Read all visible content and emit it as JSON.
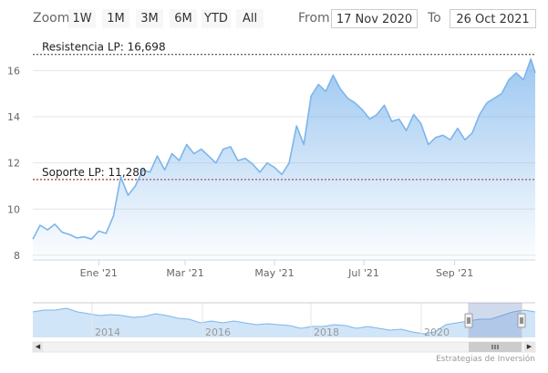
{
  "toolbar": {
    "zoom_label": "Zoom",
    "buttons": [
      "1W",
      "1M",
      "3M",
      "6M",
      "YTD",
      "All"
    ],
    "from_label": "From",
    "from_value": "17 Nov 2020",
    "to_label": "To",
    "to_value": "26 Oct 2021"
  },
  "colors": {
    "line": "#7cb5ec",
    "resistance_line": "#333333",
    "support_line": "#8b0000",
    "navigator_mask": "rgba(102,133,194,0.3)"
  },
  "credits": "Estrategias de Inversión",
  "chart_data": {
    "type": "area",
    "title": "",
    "xlabel": "",
    "ylabel": "",
    "ylim": [
      7.8,
      17.2
    ],
    "xlim": [
      "2020-11-17",
      "2021-10-26"
    ],
    "y_ticks": [
      8,
      10,
      12,
      14,
      16
    ],
    "x_ticks": [
      {
        "label": "Ene '21",
        "date": "2021-01-01"
      },
      {
        "label": "Mar '21",
        "date": "2021-03-01"
      },
      {
        "label": "May '21",
        "date": "2021-05-01"
      },
      {
        "label": "Jul '21",
        "date": "2021-07-01"
      },
      {
        "label": "Sep '21",
        "date": "2021-09-01"
      }
    ],
    "grid": true,
    "plot_lines": [
      {
        "label": "Resistencia LP: 16,698",
        "value": 16.698,
        "style": "dashed"
      },
      {
        "label": "Soporte LP: 11,280",
        "value": 11.28,
        "style": "dashed"
      }
    ],
    "series": [
      {
        "x": [
          "2020-11-17",
          "2020-11-22",
          "2020-11-27",
          "2020-12-02",
          "2020-12-07",
          "2020-12-12",
          "2020-12-17",
          "2020-12-22",
          "2020-12-27",
          "2021-01-01",
          "2021-01-06",
          "2021-01-11",
          "2021-01-16",
          "2021-01-21",
          "2021-01-26",
          "2021-01-31",
          "2021-02-05",
          "2021-02-10",
          "2021-02-15",
          "2021-02-20",
          "2021-02-25",
          "2021-03-02",
          "2021-03-07",
          "2021-03-12",
          "2021-03-17",
          "2021-03-22",
          "2021-03-27",
          "2021-04-01",
          "2021-04-06",
          "2021-04-11",
          "2021-04-16",
          "2021-04-21",
          "2021-04-26",
          "2021-05-01",
          "2021-05-06",
          "2021-05-11",
          "2021-05-16",
          "2021-05-21",
          "2021-05-26",
          "2021-05-31",
          "2021-06-05",
          "2021-06-10",
          "2021-06-15",
          "2021-06-20",
          "2021-06-25",
          "2021-06-30",
          "2021-07-05",
          "2021-07-10",
          "2021-07-15",
          "2021-07-20",
          "2021-07-25",
          "2021-07-30",
          "2021-08-04",
          "2021-08-09",
          "2021-08-14",
          "2021-08-19",
          "2021-08-24",
          "2021-08-29",
          "2021-09-03",
          "2021-09-08",
          "2021-09-13",
          "2021-09-18",
          "2021-09-23",
          "2021-09-28",
          "2021-10-03",
          "2021-10-08",
          "2021-10-13",
          "2021-10-18",
          "2021-10-23",
          "2021-10-26"
        ],
        "values": [
          8.7,
          9.3,
          9.1,
          9.35,
          9.0,
          8.9,
          8.75,
          8.8,
          8.7,
          9.05,
          8.95,
          9.7,
          11.4,
          10.6,
          11.0,
          11.7,
          11.6,
          12.3,
          11.7,
          12.4,
          12.1,
          12.8,
          12.4,
          12.6,
          12.3,
          12.0,
          12.6,
          12.7,
          12.1,
          12.2,
          11.95,
          11.6,
          12.0,
          11.8,
          11.5,
          12.0,
          13.6,
          12.8,
          14.9,
          15.4,
          15.1,
          15.8,
          15.2,
          14.8,
          14.6,
          14.3,
          13.9,
          14.1,
          14.5,
          13.8,
          13.9,
          13.4,
          14.1,
          13.7,
          12.8,
          13.1,
          13.2,
          13.0,
          13.5,
          13.0,
          13.3,
          14.1,
          14.6,
          14.8,
          15.0,
          15.6,
          15.9,
          15.6,
          16.5,
          15.9
        ]
      }
    ]
  },
  "navigator": {
    "x_labels": [
      "2014",
      "2016",
      "2018",
      "2020"
    ],
    "values": [
      8.2,
      8.3,
      8.3,
      8.4,
      8.2,
      8.1,
      8.0,
      8.05,
      8.0,
      7.9,
      7.95,
      8.1,
      8.0,
      7.85,
      7.8,
      7.6,
      7.7,
      7.6,
      7.7,
      7.6,
      7.5,
      7.55,
      7.5,
      7.45,
      7.3,
      7.4,
      7.4,
      7.5,
      7.45,
      7.3,
      7.4,
      7.3,
      7.2,
      7.25,
      7.1,
      7.0,
      7.1,
      7.5,
      7.6,
      7.7,
      7.8,
      7.8,
      8.0,
      8.2,
      8.3,
      8.2
    ]
  }
}
